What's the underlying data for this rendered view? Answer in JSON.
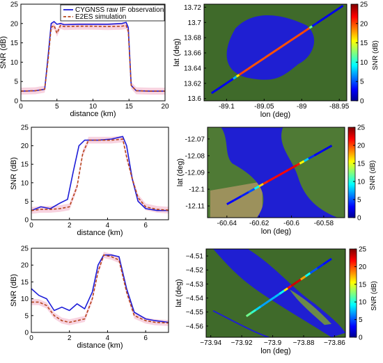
{
  "colors": {
    "observation": "#1c1cd8",
    "simulation": "#b5451b",
    "uncertainty_band": "#f6c8d8",
    "lake_water": "#1f1fd2",
    "land": "#3f6a2a",
    "colorbar_stops": [
      "#00008f",
      "#0000ff",
      "#00ffff",
      "#ffff00",
      "#ff0000",
      "#7f0000"
    ]
  },
  "legend": {
    "observation": "CYGNSS raw IF observation",
    "simulation": "E2ES simulation"
  },
  "chart_data": [
    {
      "type": "line",
      "panel": "snr-profile-1",
      "xlabel": "distance (km)",
      "ylabel": "SNR (dB)",
      "xlim": [
        0,
        20
      ],
      "ylim": [
        0,
        25
      ],
      "xticks": [
        0,
        5,
        10,
        15,
        20
      ],
      "yticks": [
        0,
        5,
        10,
        15,
        20,
        25
      ],
      "series": [
        {
          "name": "CYGNSS raw IF observation",
          "x": [
            0,
            2,
            3.3,
            3.8,
            4.2,
            4.6,
            5,
            5.5,
            6,
            8,
            10,
            12,
            14,
            14.6,
            14.9,
            15.3,
            16,
            18,
            20
          ],
          "y": [
            2.5,
            2.6,
            3,
            12,
            20,
            20.5,
            19.8,
            20,
            19.7,
            19.8,
            19.8,
            19.8,
            20,
            20.3,
            19,
            4,
            2.6,
            2.5,
            2.5
          ]
        },
        {
          "name": "E2ES simulation",
          "x": [
            0,
            2,
            3.3,
            3.8,
            4.2,
            4.6,
            5,
            5.5,
            6,
            8,
            10,
            12,
            14,
            14.6,
            14.9,
            15.3,
            16,
            18,
            20
          ],
          "y": [
            2.5,
            2.6,
            3,
            11,
            19,
            19.5,
            17.5,
            19.5,
            19.2,
            19.3,
            19.3,
            19.2,
            19.3,
            19.5,
            18,
            4,
            2.6,
            2.5,
            2.5
          ]
        }
      ]
    },
    {
      "type": "map",
      "panel": "map-1",
      "xlabel": "lon (deg)",
      "ylabel": "lat (deg)",
      "colorbar_label": "SNR (dB)",
      "xticks": [
        -89.1,
        -89.05,
        -89,
        -88.95
      ],
      "yticks": [
        13.72,
        13.7,
        13.68,
        13.66,
        13.64,
        13.62,
        13.6
      ],
      "xtick_labels": [
        "-89.1",
        "-89.05",
        "-89",
        "-88.95"
      ],
      "ytick_labels": [
        "13.72",
        "13.7",
        "13.68",
        "13.66",
        "13.64",
        "13.62",
        "13.6"
      ],
      "xlim": [
        -89.13,
        -88.94
      ],
      "ylim": [
        13.597,
        13.724
      ],
      "clim": [
        0,
        25
      ],
      "colorbar_ticks": [
        0,
        5,
        10,
        15,
        20,
        25
      ],
      "track": {
        "lon": [
          -89.12,
          -88.945
        ],
        "lat": [
          13.607,
          13.722
        ]
      }
    },
    {
      "type": "line",
      "panel": "snr-profile-2",
      "xlabel": "distance (km)",
      "ylabel": "SNR (dB)",
      "xlim": [
        0,
        7.2
      ],
      "ylim": [
        0,
        25
      ],
      "xticks": [
        0,
        2,
        4,
        6
      ],
      "yticks": [
        0,
        5,
        10,
        15,
        20,
        25
      ],
      "series": [
        {
          "name": "CYGNSS raw IF observation",
          "x": [
            0,
            0.5,
            1,
            1.5,
            1.9,
            2.2,
            2.5,
            2.8,
            3.5,
            4.2,
            4.8,
            5.0,
            5.3,
            5.6,
            6,
            6.6,
            7.2
          ],
          "y": [
            2.5,
            3.5,
            3,
            4.5,
            5.5,
            13,
            20,
            21.5,
            21.5,
            21.8,
            22.5,
            20,
            11,
            5,
            3,
            2.5,
            2.5
          ]
        },
        {
          "name": "E2ES simulation",
          "x": [
            0,
            0.5,
            1,
            1.5,
            2,
            2.4,
            2.7,
            3,
            3.5,
            4.2,
            4.8,
            5.0,
            5.3,
            5.6,
            6,
            6.6,
            7.2
          ],
          "y": [
            2.5,
            2.8,
            2.8,
            3,
            3.5,
            9,
            18,
            21.5,
            21.5,
            21.5,
            21.8,
            17,
            11,
            6,
            3.5,
            2.8,
            2.6
          ]
        }
      ]
    },
    {
      "type": "map",
      "panel": "map-2",
      "xlabel": "lon (deg)",
      "ylabel": "lat (deg)",
      "colorbar_label": "SNR (dB)",
      "xticks": [
        -60.64,
        -60.62,
        -60.6,
        -60.58
      ],
      "yticks": [
        -12.07,
        -12.08,
        -12.09,
        -12.1,
        -12.11
      ],
      "xtick_labels": [
        "-60.64",
        "-60.62",
        "-60.6",
        "-60.58"
      ],
      "ytick_labels": [
        "-12.07",
        "-12.08",
        "-12.09",
        "-12.1",
        "-12.11"
      ],
      "xlim": [
        -60.652,
        -60.567
      ],
      "ylim": [
        -12.117,
        -12.063
      ],
      "clim": [
        0,
        25
      ],
      "colorbar_ticks": [
        0,
        5,
        10,
        15,
        20,
        25
      ],
      "track": {
        "lon": [
          -60.64,
          -60.575
        ],
        "lat": [
          -12.109,
          -12.074
        ]
      }
    },
    {
      "type": "line",
      "panel": "snr-profile-3",
      "xlabel": "distance (km)",
      "ylabel": "SNR (dB)",
      "xlim": [
        0,
        7.2
      ],
      "ylim": [
        0,
        25
      ],
      "xticks": [
        0,
        2,
        4,
        6
      ],
      "yticks": [
        0,
        5,
        10,
        15,
        20,
        25
      ],
      "series": [
        {
          "name": "CYGNSS raw IF observation",
          "x": [
            0,
            0.4,
            0.8,
            1.2,
            1.6,
            2.0,
            2.4,
            2.8,
            3.2,
            3.5,
            3.8,
            4.2,
            4.6,
            5.0,
            5.4,
            6,
            6.5,
            7.2
          ],
          "y": [
            13,
            11,
            10,
            6.5,
            7.5,
            6.5,
            8.5,
            7,
            12,
            20,
            23,
            23,
            22.5,
            13,
            6,
            4,
            3.5,
            3
          ]
        },
        {
          "name": "E2ES simulation",
          "x": [
            0,
            0.4,
            0.8,
            1.2,
            1.6,
            2.0,
            2.4,
            2.8,
            3.2,
            3.5,
            3.8,
            4.2,
            4.6,
            5.0,
            5.4,
            6,
            6.5,
            7.2
          ],
          "y": [
            9,
            9,
            8,
            5,
            3.5,
            3,
            3.5,
            4,
            10,
            18,
            23,
            22.5,
            21.5,
            12,
            5,
            3.5,
            3,
            2.8
          ]
        }
      ]
    },
    {
      "type": "map",
      "panel": "map-3",
      "xlabel": "lon (deg)",
      "ylabel": "lat (deg)",
      "colorbar_label": "SNR (dB)",
      "xticks": [
        -73.94,
        -73.92,
        -73.9,
        -73.88,
        -73.86
      ],
      "yticks": [
        -4.51,
        -4.52,
        -4.53,
        -4.54,
        -4.55,
        -4.56
      ],
      "xtick_labels": [
        "−73.94",
        "−73.92",
        "−73.9",
        "−73.88",
        "−73.86"
      ],
      "ytick_labels": [
        "−4.51",
        "−4.52",
        "−4.53",
        "−4.54",
        "−4.55",
        "−4.56"
      ],
      "xlim": [
        -73.943,
        -73.853
      ],
      "ylim": [
        -4.568,
        -4.505
      ],
      "clim": [
        0,
        25
      ],
      "colorbar_ticks": [
        0,
        5,
        10,
        15,
        20,
        25
      ],
      "track": {
        "lon": [
          -73.917,
          -73.862
        ],
        "lat": [
          -4.553,
          -4.512
        ]
      }
    }
  ]
}
